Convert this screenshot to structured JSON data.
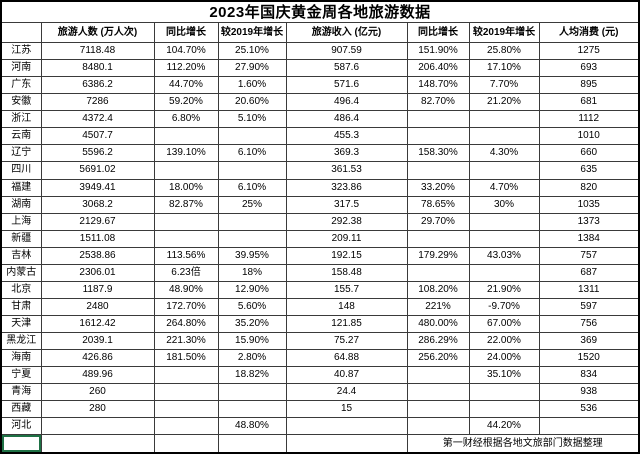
{
  "title": "2023年国庆黄金周各地旅游数据",
  "table": {
    "headers": [
      "",
      "旅游人数 (万人次)",
      "同比增长",
      "较2019年增长",
      "旅游收入 (亿元)",
      "同比增长",
      "较2019年增长",
      "人均消费 (元)"
    ],
    "rows": [
      [
        "江苏",
        "7118.48",
        "104.70%",
        "25.10%",
        "907.59",
        "151.90%",
        "25.80%",
        "1275"
      ],
      [
        "河南",
        "8480.1",
        "112.20%",
        "27.90%",
        "587.6",
        "206.40%",
        "17.10%",
        "693"
      ],
      [
        "广东",
        "6386.2",
        "44.70%",
        "1.60%",
        "571.6",
        "148.70%",
        "7.70%",
        "895"
      ],
      [
        "安徽",
        "7286",
        "59.20%",
        "20.60%",
        "496.4",
        "82.70%",
        "21.20%",
        "681"
      ],
      [
        "浙江",
        "4372.4",
        "6.80%",
        "5.10%",
        "486.4",
        "",
        "",
        "1112"
      ],
      [
        "云南",
        "4507.7",
        "",
        "",
        "455.3",
        "",
        "",
        "1010"
      ],
      [
        "辽宁",
        "5596.2",
        "139.10%",
        "6.10%",
        "369.3",
        "158.30%",
        "4.30%",
        "660"
      ],
      [
        "四川",
        "5691.02",
        "",
        "",
        "361.53",
        "",
        "",
        "635"
      ],
      [
        "福建",
        "3949.41",
        "18.00%",
        "6.10%",
        "323.86",
        "33.20%",
        "4.70%",
        "820"
      ],
      [
        "湖南",
        "3068.2",
        "82.87%",
        "25%",
        "317.5",
        "78.65%",
        "30%",
        "1035"
      ],
      [
        "上海",
        "2129.67",
        "",
        "",
        "292.38",
        "29.70%",
        "",
        "1373"
      ],
      [
        "新疆",
        "1511.08",
        "",
        "",
        "209.11",
        "",
        "",
        "1384"
      ],
      [
        "吉林",
        "2538.86",
        "113.56%",
        "39.95%",
        "192.15",
        "179.29%",
        "43.03%",
        "757"
      ],
      [
        "内蒙古",
        "2306.01",
        "6.23倍",
        "18%",
        "158.48",
        "",
        "",
        "687"
      ],
      [
        "北京",
        "1187.9",
        "48.90%",
        "12.90%",
        "155.7",
        "108.20%",
        "21.90%",
        "1311"
      ],
      [
        "甘肃",
        "2480",
        "172.70%",
        "5.60%",
        "148",
        "221%",
        "-9.70%",
        "597"
      ],
      [
        "天津",
        "1612.42",
        "264.80%",
        "35.20%",
        "121.85",
        "480.00%",
        "67.00%",
        "756"
      ],
      [
        "黑龙江",
        "2039.1",
        "221.30%",
        "15.90%",
        "75.27",
        "286.29%",
        "22.00%",
        "369"
      ],
      [
        "海南",
        "426.86",
        "181.50%",
        "2.80%",
        "64.88",
        "256.20%",
        "24.00%",
        "1520"
      ],
      [
        "宁夏",
        "489.96",
        "",
        "18.82%",
        "40.87",
        "",
        "35.10%",
        "834"
      ],
      [
        "青海",
        "260",
        "",
        "",
        "24.4",
        "",
        "",
        "938"
      ],
      [
        "西藏",
        "280",
        "",
        "",
        "15",
        "",
        "",
        "536"
      ],
      [
        "河北",
        "",
        "",
        "48.80%",
        "",
        "",
        "44.20%",
        ""
      ]
    ],
    "footer_note": "第一财经根据各地文旅部门数据整理"
  },
  "colors": {
    "grid_line": "#3a3a3a",
    "outer_border": "#000000",
    "selection_green": "#1e7145",
    "text": "#000000",
    "background": "#ffffff"
  }
}
